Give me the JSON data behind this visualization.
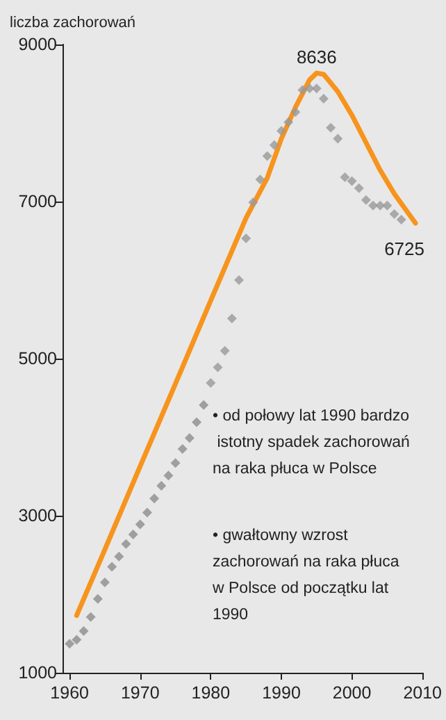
{
  "chart_data": {
    "type": "scatter",
    "ylabel": "liczba zachorowań",
    "xlim": [
      1959,
      2010
    ],
    "ylim": [
      1000,
      9000
    ],
    "xticks": [
      1960,
      1970,
      1980,
      1990,
      2000,
      2010
    ],
    "yticks": [
      1000,
      3000,
      5000,
      7000,
      9000
    ],
    "grid": false,
    "marker": "diamond",
    "annotations": [
      "• od połowy lat 1990 bardzo istotny spadek zachorowań na raka płuca w Polsce",
      "• gwałtowny wzrost zachorowań na raka płuca w Polsce od początku lat 1990"
    ],
    "series": [
      {
        "color": "#8c8c8c",
        "x": [
          1960,
          1961,
          1962,
          1963,
          1964,
          1965,
          1966,
          1967,
          1968,
          1969,
          1970,
          1971,
          1972,
          1973,
          1974,
          1975,
          1976,
          1977,
          1978,
          1979
        ],
        "values": [
          1370,
          1420,
          1530,
          1710,
          1940,
          2150,
          2350,
          2480,
          2640,
          2760,
          2890,
          3040,
          3220,
          3380,
          3510,
          3670,
          3850,
          3990,
          4190,
          4410
        ]
      },
      {
        "color": "#999999",
        "x": [
          1980,
          1981,
          1982,
          1983,
          1984,
          1985,
          1986,
          1987,
          1988,
          1989,
          1990,
          1991,
          1992,
          1993,
          1994,
          1995,
          1996,
          1997,
          1998,
          1999,
          2000,
          2001,
          2002,
          2003,
          2004,
          2005,
          2006,
          2007
        ],
        "values": [
          4690,
          4890,
          5100,
          5510,
          6000,
          6530,
          6990,
          7280,
          7580,
          7720,
          7900,
          8010,
          8140,
          8420,
          8440,
          8440,
          8310,
          7940,
          7800,
          7310,
          7260,
          7170,
          7020,
          6950,
          6950,
          6950,
          6840,
          6770
        ]
      },
      {
        "type": "line",
        "marker": "none",
        "color": "#f7941d",
        "x": [
          1961,
          1965,
          1970,
          1975,
          1980,
          1985,
          1988,
          1990,
          1992,
          1994,
          1995,
          1996,
          1998,
          2000,
          2002,
          2004,
          2006,
          2008,
          2009
        ],
        "values": [
          1730,
          2570,
          3630,
          4680,
          5740,
          6790,
          7300,
          7800,
          8200,
          8550,
          8636,
          8620,
          8400,
          8100,
          7750,
          7400,
          7100,
          6850,
          6725
        ],
        "value_labels": [
          null,
          null,
          null,
          null,
          null,
          null,
          null,
          null,
          null,
          null,
          "8636",
          null,
          null,
          null,
          null,
          null,
          null,
          null,
          "6725"
        ]
      }
    ]
  }
}
